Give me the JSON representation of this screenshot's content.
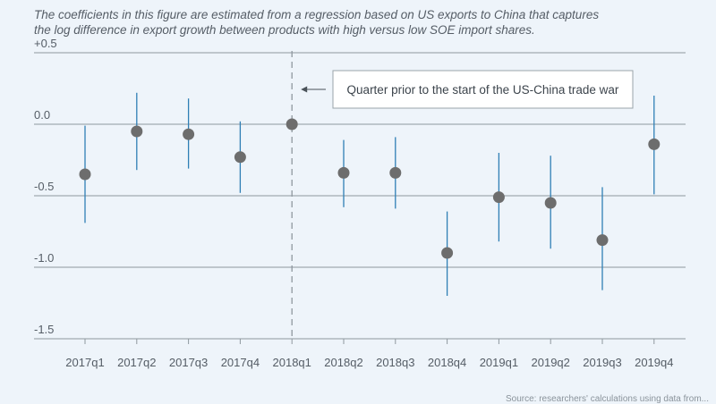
{
  "chart_data": {
    "type": "scatter",
    "subtitle": "The coefficients in this figure are estimated from a regression based on US exports to China that captures the log difference in export growth between products with high versus low SOE import shares.",
    "categories": [
      "2017q1",
      "2017q2",
      "2017q3",
      "2017q4",
      "2018q1",
      "2018q2",
      "2018q3",
      "2018q4",
      "2019q1",
      "2019q2",
      "2019q3",
      "2019q4"
    ],
    "series": [
      {
        "values": [
          -0.35,
          -0.05,
          -0.07,
          -0.23,
          0.0,
          -0.34,
          -0.34,
          -0.9,
          -0.51,
          -0.55,
          -0.81,
          -0.14
        ],
        "ci_low": [
          -0.69,
          -0.32,
          -0.31,
          -0.48,
          0.0,
          -0.58,
          -0.59,
          -1.2,
          -0.82,
          -0.87,
          -1.16,
          -0.49
        ],
        "ci_high": [
          -0.01,
          0.22,
          0.18,
          0.02,
          0.0,
          -0.11,
          -0.09,
          -0.61,
          -0.2,
          -0.22,
          -0.44,
          0.2
        ]
      }
    ],
    "ylim": [
      -1.5,
      0.5
    ],
    "yticks": [
      {
        "value": 0.5,
        "label": "+0.5"
      },
      {
        "value": 0.0,
        "label": "0.0"
      },
      {
        "value": -0.5,
        "label": "-0.5"
      },
      {
        "value": -1.0,
        "label": "-1.0"
      },
      {
        "value": -1.5,
        "label": "-1.5"
      }
    ],
    "grid": true,
    "reference_line": {
      "category": "2018q1",
      "style": "dashed"
    },
    "annotation": {
      "text": "Quarter prior to the start of the US-China trade war",
      "points_to": "2018q1"
    },
    "footnote": "Source: researchers' calculations using data from..."
  },
  "colors": {
    "background": "#eef4fa",
    "point": "#6d6d6d",
    "error_bar": "#2f7fb5",
    "gridline": "#8f989f",
    "reference_line": "#8f989f",
    "text": "#555d66"
  }
}
